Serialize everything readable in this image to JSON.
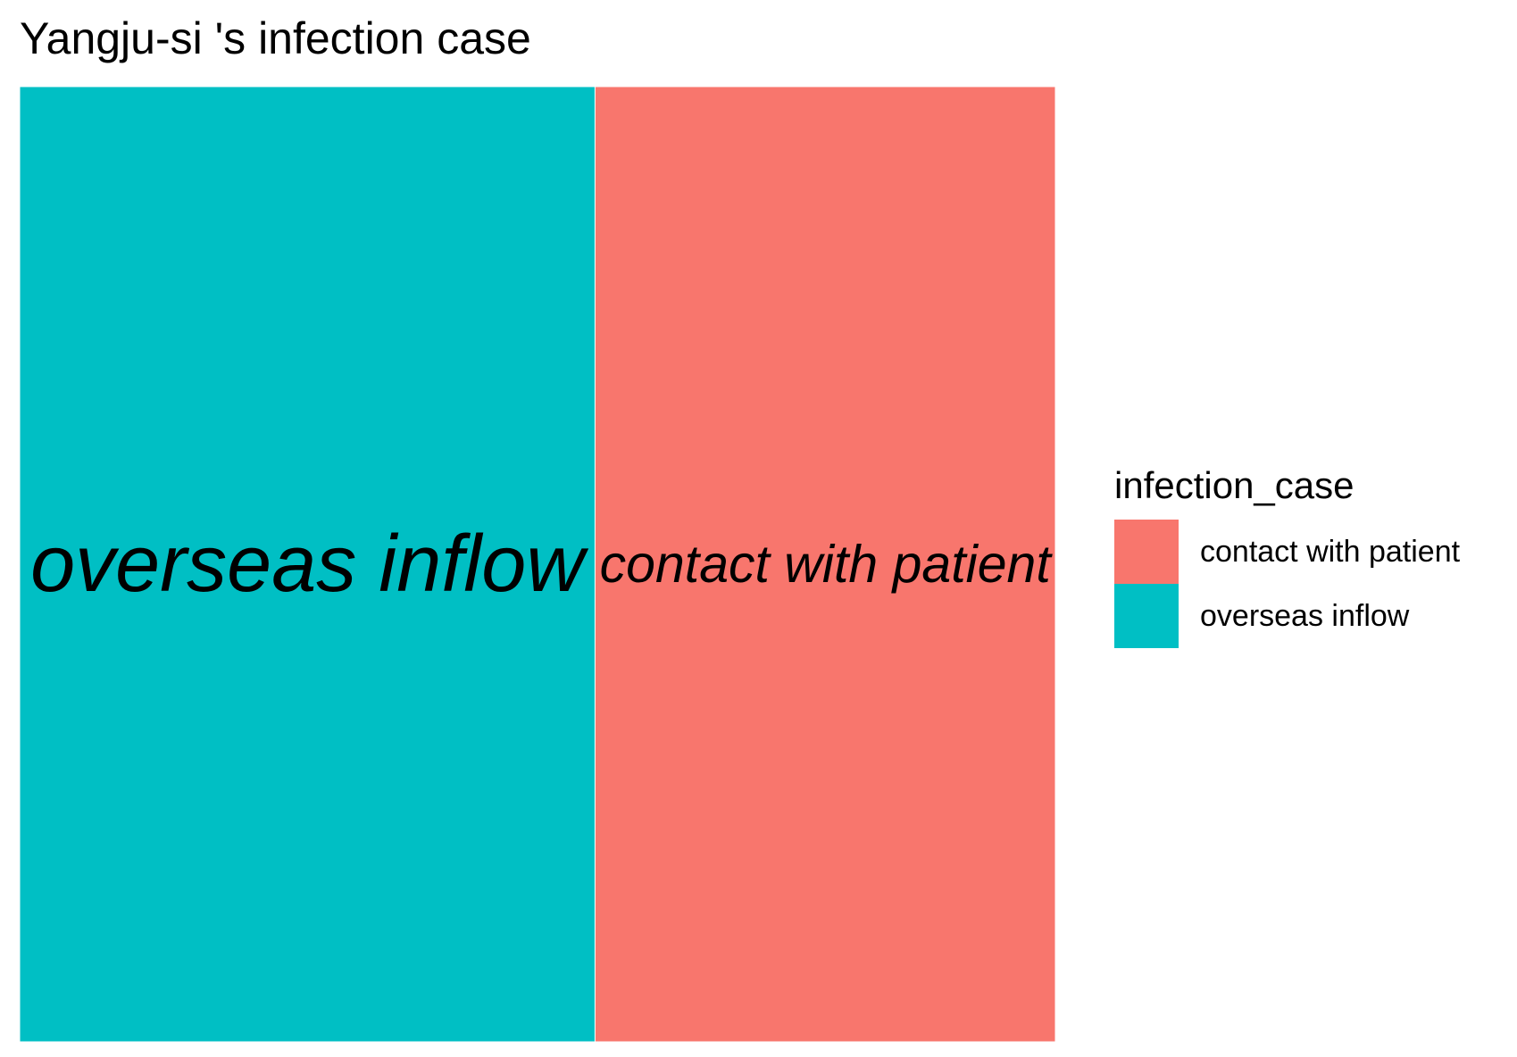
{
  "title": "Yangju-si 's infection case",
  "legend": {
    "title": "infection_case",
    "position": "right",
    "items": [
      {
        "label": "contact with patient",
        "color": "#F8766D"
      },
      {
        "label": "overseas inflow",
        "color": "#00BFC4"
      }
    ]
  },
  "chart_data": {
    "type": "treemap",
    "title": "Yangju-si 's infection case",
    "fill_variable": "infection_case",
    "tiles": [
      {
        "label": "overseas inflow",
        "value": 5,
        "color": "#00BFC4"
      },
      {
        "label": "contact with patient",
        "value": 4,
        "color": "#F8766D"
      }
    ]
  }
}
